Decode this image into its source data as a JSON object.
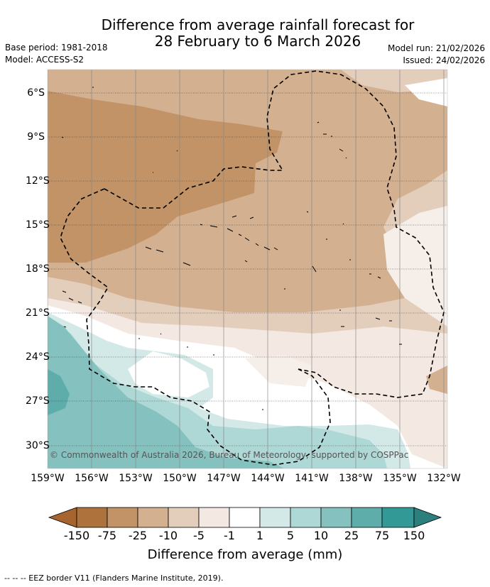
{
  "title_line1": "Difference from average rainfall forecast for",
  "title_line2": "28 February to 6 March 2026",
  "base_period": "Base period: 1981-2018",
  "model": "Model: ACCESS-S2",
  "model_run": "Model run: 21/02/2026",
  "issued": "Issued: 24/02/2026",
  "copyright": "© Commonwealth of Australia 2026, Bureau of Meteorology, supported by COSPPac",
  "lat_labels": [
    "6°S",
    "9°S",
    "12°S",
    "15°S",
    "18°S",
    "21°S",
    "24°S",
    "27°S",
    "30°S"
  ],
  "lon_labels": [
    "159°W",
    "156°W",
    "153°W",
    "150°W",
    "147°W",
    "144°W",
    "141°W",
    "138°W",
    "135°W",
    "132°W"
  ],
  "colorbar": {
    "labels": [
      "-150",
      "-75",
      "-25",
      "-10",
      "-5",
      "-1",
      "1",
      "5",
      "10",
      "25",
      "75",
      "150"
    ],
    "title": "Difference from average (mm)",
    "colors": {
      "below_min": "#a6642e",
      "lt_-150": "#ae733c",
      "-150_-75": "#c19366",
      "-75_-25": "#d3b08f",
      "-25_-10": "#e3cdbb",
      "-10_-5": "#f3e9e2",
      "-5_-1": "#f5eee9",
      "-1_1": "#ffffff",
      "1_5": "#d3e9e7",
      "5_10": "#add8d5",
      "10_25": "#84c1bf",
      "25_75": "#5fadab",
      "75_150": "#329996",
      "above_max": "#2c7f7c"
    }
  },
  "footer": "--  --  -- EEZ border V11 (Flanders Marine Institute, 2019)."
}
